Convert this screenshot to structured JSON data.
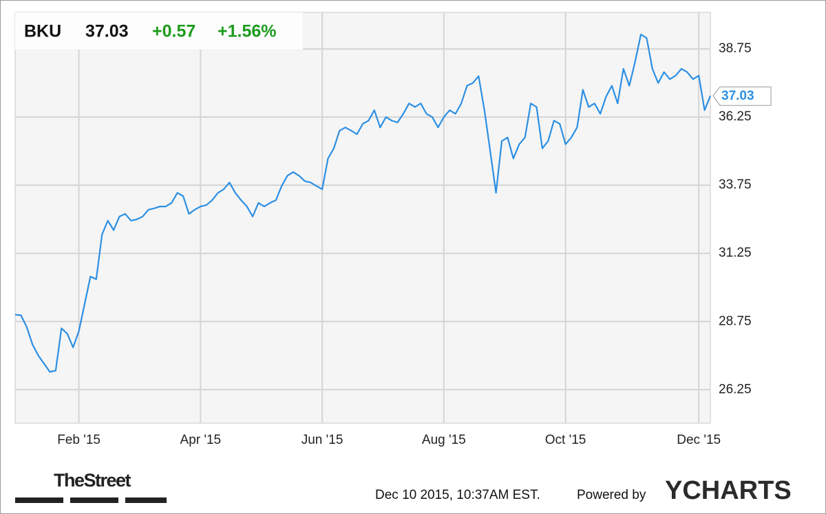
{
  "chart_data": {
    "type": "line",
    "symbol": "BKU",
    "price": "37.03",
    "change": "+0.57",
    "change_pct": "+1.56%",
    "categories": [
      null,
      null,
      null,
      null,
      null,
      null,
      null,
      null,
      null,
      null,
      null,
      "Feb '15",
      null,
      null,
      null,
      null,
      null,
      null,
      null,
      null,
      null,
      null,
      null,
      null,
      null,
      null,
      null,
      null,
      null,
      null,
      null,
      null,
      "Apr '15",
      null,
      null,
      null,
      null,
      null,
      null,
      null,
      null,
      null,
      null,
      null,
      null,
      null,
      null,
      null,
      null,
      null,
      null,
      null,
      null,
      "Jun '15",
      null,
      null,
      null,
      null,
      null,
      null,
      null,
      null,
      null,
      null,
      null,
      null,
      null,
      null,
      null,
      null,
      null,
      null,
      null,
      null,
      "Aug '15",
      null,
      null,
      null,
      null,
      null,
      null,
      null,
      null,
      null,
      null,
      null,
      null,
      null,
      null,
      null,
      null,
      null,
      null,
      null,
      null,
      "Oct '15",
      null,
      null,
      null,
      null,
      null,
      null,
      null,
      null,
      null,
      null,
      null,
      null,
      null,
      null,
      null,
      null,
      null,
      null,
      null,
      null,
      null,
      null,
      "Dec '15",
      null,
      null
    ],
    "series": [
      {
        "name": "BKU",
        "color": "#2b8fe3",
        "values": [
          29.0,
          28.98,
          28.55,
          27.9,
          27.5,
          27.2,
          26.9,
          26.95,
          28.5,
          28.3,
          27.8,
          28.4,
          29.4,
          30.4,
          30.3,
          31.95,
          32.45,
          32.1,
          32.6,
          32.7,
          32.45,
          32.5,
          32.6,
          32.85,
          32.9,
          32.97,
          32.97,
          33.1,
          33.47,
          33.35,
          32.7,
          32.85,
          32.97,
          33.02,
          33.2,
          33.47,
          33.6,
          33.85,
          33.47,
          33.2,
          32.97,
          32.6,
          33.1,
          32.97,
          33.1,
          33.2,
          33.72,
          34.1,
          34.23,
          34.1,
          33.9,
          33.85,
          33.72,
          33.6,
          34.73,
          35.1,
          35.75,
          35.87,
          35.75,
          35.62,
          36.0,
          36.12,
          36.5,
          35.87,
          36.25,
          36.12,
          36.05,
          36.37,
          36.75,
          36.62,
          36.75,
          36.37,
          36.25,
          35.87,
          36.25,
          36.5,
          36.37,
          36.75,
          37.4,
          37.5,
          37.75,
          36.5,
          34.99,
          33.47,
          35.37,
          35.5,
          34.73,
          35.25,
          35.5,
          36.75,
          36.62,
          35.1,
          35.37,
          36.12,
          36.0,
          35.25,
          35.5,
          35.87,
          37.25,
          36.62,
          36.75,
          36.37,
          37.0,
          37.4,
          36.75,
          38.02,
          37.4,
          38.27,
          39.28,
          39.15,
          38.02,
          37.5,
          37.9,
          37.64,
          37.77,
          38.02,
          37.9,
          37.64,
          37.77,
          36.5,
          37.03
        ]
      }
    ],
    "ylim": [
      25.02,
      40.09
    ],
    "yticks": [
      26.25,
      28.75,
      31.25,
      33.75,
      36.25,
      38.75
    ],
    "grid": true,
    "footer": {
      "logo": "TheStreet",
      "timestamp": "Dec 10 2015, 10:37AM EST.",
      "powered_by": "Powered by",
      "brand": "YCHARTS"
    }
  }
}
